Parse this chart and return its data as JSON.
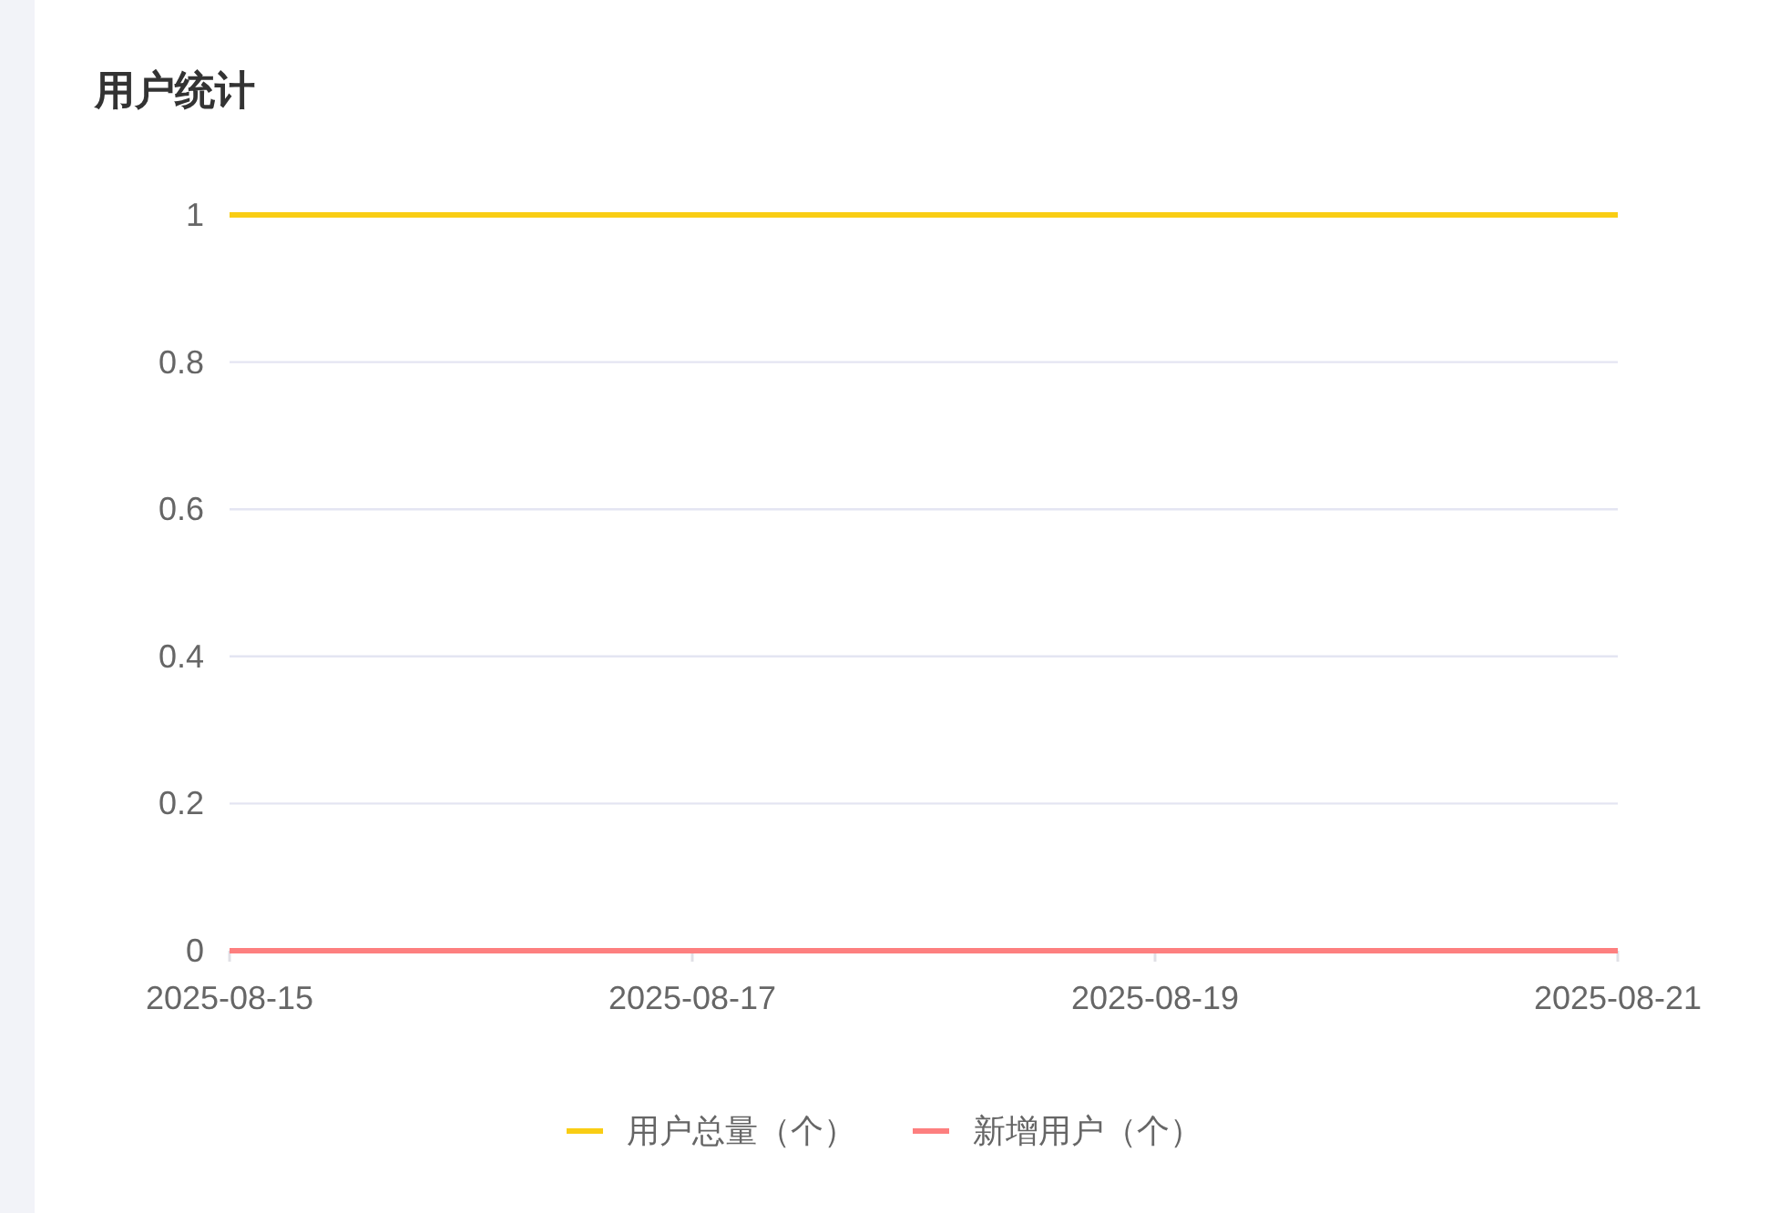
{
  "chart_data": {
    "type": "line",
    "title": "用户统计",
    "x": [
      "2025-08-15",
      "2025-08-16",
      "2025-08-17",
      "2025-08-18",
      "2025-08-19",
      "2025-08-20",
      "2025-08-21"
    ],
    "series": [
      {
        "name": "用户总量（个）",
        "color": "#f9cd14",
        "values": [
          1,
          1,
          1,
          1,
          1,
          1,
          1
        ]
      },
      {
        "name": "新增用户（个）",
        "color": "#fd7f7f",
        "values": [
          0,
          0,
          0,
          0,
          0,
          0,
          0
        ]
      }
    ],
    "xlim": [
      "2025-08-15",
      "2025-08-21"
    ],
    "xticks": [
      "2025-08-15",
      "2025-08-17",
      "2025-08-19",
      "2025-08-21"
    ],
    "ylim": [
      0,
      1
    ],
    "yticks": [
      0,
      0.2,
      0.4,
      0.6,
      0.8,
      1
    ],
    "grid": "y",
    "legend": "bottom",
    "marker": "none",
    "line_style": "solid"
  }
}
